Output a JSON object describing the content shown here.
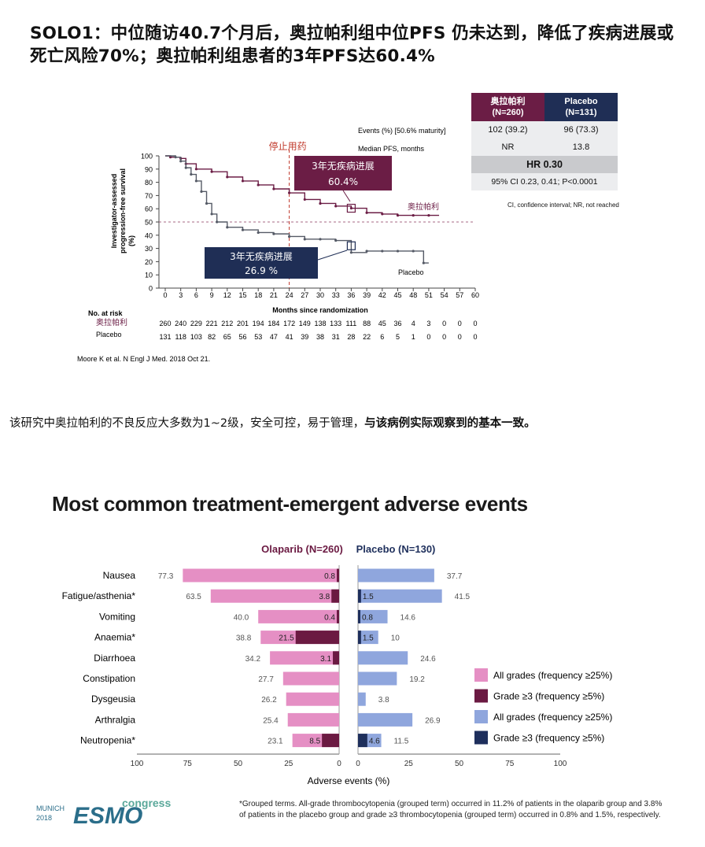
{
  "title": "SOLO1：中位随访40.7个月后，奥拉帕利组中位PFS 仍未达到，降低了疾病进展或死亡风险70%；奥拉帕利组患者的3年PFS达60.4%",
  "colors": {
    "olaparib_km": "#6b1d45",
    "placebo_km": "#1f2e55",
    "ola_all": "#e58fc4",
    "ola_g3": "#6b1a42",
    "pla_all": "#8fa6dd",
    "pla_g3": "#1e2f5c"
  },
  "km": {
    "stop_label": "停止用药",
    "events_label": "Events (%) [50.6% maturity]",
    "median_label": "Median PFS, months",
    "y_axis_label_1": "Investigator-assessed",
    "y_axis_label_2": "progression-free survival",
    "y_axis_label_3": "(%)",
    "x_axis_label": "Months since randomization",
    "y_ticks": [
      "100",
      "90",
      "80",
      "70",
      "60",
      "50",
      "40",
      "30",
      "20",
      "10",
      "0"
    ],
    "x_ticks": [
      "0",
      "3",
      "6",
      "9",
      "12",
      "15",
      "18",
      "21",
      "24",
      "27",
      "30",
      "33",
      "36",
      "39",
      "42",
      "45",
      "48",
      "51",
      "54",
      "57",
      "60"
    ],
    "callout_ola_line1": "3年无疾病进展",
    "callout_ola_line2": "60.4%",
    "callout_pla_line1": "3年无疾病进展",
    "callout_pla_line2": "26.9 %",
    "curve_label_ola": "奥拉帕利",
    "curve_label_pla": "Placebo",
    "risk_title": "No. at risk",
    "risk_ola_label": "奥拉帕利",
    "risk_pla_label": "Placebo",
    "risk_ola": [
      "260",
      "240",
      "229",
      "221",
      "212",
      "201",
      "194",
      "184",
      "172",
      "149",
      "138",
      "133",
      "111",
      "88",
      "45",
      "36",
      "4",
      "3",
      "0",
      "0",
      "0"
    ],
    "risk_pla": [
      "131",
      "118",
      "103",
      "82",
      "65",
      "56",
      "53",
      "47",
      "41",
      "39",
      "38",
      "31",
      "28",
      "22",
      "6",
      "5",
      "1",
      "0",
      "0",
      "0",
      "0"
    ],
    "citation": "Moore K et al. N Engl J Med. 2018 Oct 21."
  },
  "table": {
    "ola_head_1": "奥拉帕利",
    "ola_head_2": "(N=260)",
    "pla_head_1": "Placebo",
    "pla_head_2": "(N=131)",
    "ola_events": "102 (39.2)",
    "pla_events": "96 (73.3)",
    "ola_median": "NR",
    "pla_median": "13.8",
    "hr": "HR 0.30",
    "ci": "95% CI 0.23, 0.41; P<0.0001",
    "abbrev": "CI, confidence interval; NR, not reached"
  },
  "body_text_plain": "该研究中奥拉帕利的不良反应大多数为1~2级，安全可控，易于管理，",
  "body_text_bold": "与该病例实际观察到的基本一致。",
  "ae": {
    "title": "Most common treatment-emergent adverse events",
    "ola_header": "Olaparib (N=260)",
    "pla_header": "Placebo (N=130)",
    "x_label": "Adverse events (%)",
    "x_ticks_left": [
      "100",
      "75",
      "50",
      "25",
      "0"
    ],
    "x_ticks_right": [
      "0",
      "25",
      "50",
      "75",
      "100"
    ],
    "legend": [
      "All grades (frequency ≥25%)",
      "Grade ≥3 (frequency ≥5%)",
      "All grades (frequency ≥25%)",
      "Grade ≥3 (frequency ≥5%)"
    ],
    "footnote": "*Grouped terms. All-grade thrombocytopenia (grouped term) occurred in 11.2% of patients in the olaparib group and 3.8% of patients in the placebo group and grade ≥3 thrombocytopenia (grouped term) occurred in 0.8% and 1.5%, respectively.",
    "logo_munich": "MUNICH",
    "logo_year": "2018",
    "logo_esmo": "ESMO",
    "logo_congress": "congress"
  },
  "chart_data": [
    {
      "type": "line",
      "xlabel": "Months since randomization",
      "ylabel": "Investigator-assessed progression-free survival (%)",
      "xlim": [
        0,
        60
      ],
      "ylim": [
        0,
        100
      ],
      "series": [
        {
          "name": "奥拉帕利",
          "x": [
            0,
            1,
            3,
            4,
            6,
            9,
            12,
            15,
            18,
            21,
            24,
            27,
            30,
            33,
            36,
            39,
            42,
            45,
            48,
            51,
            53
          ],
          "y": [
            100,
            99,
            98,
            94,
            90,
            88,
            84,
            81,
            78,
            75,
            72,
            67,
            64,
            62,
            60.4,
            57,
            56,
            55,
            55,
            55,
            55
          ]
        },
        {
          "name": "Placebo",
          "x": [
            0,
            2,
            3,
            4,
            5,
            6,
            7,
            8,
            9,
            10,
            12,
            15,
            18,
            21,
            24,
            27,
            30,
            33,
            36,
            39,
            42,
            45,
            48,
            50,
            51
          ],
          "y": [
            100,
            99,
            96,
            91,
            86,
            81,
            73,
            64,
            56,
            50,
            46,
            44,
            42,
            41,
            39,
            37,
            37,
            36,
            26.9,
            28,
            28,
            28,
            28,
            19,
            19
          ]
        }
      ]
    },
    {
      "type": "bar",
      "categories": [
        "Nausea",
        "Fatigue/asthenia*",
        "Vomiting",
        "Anaemia*",
        "Diarrhoea",
        "Constipation",
        "Dysgeusia",
        "Arthralgia",
        "Neutropenia*"
      ],
      "series": [
        {
          "name": "Olaparib All grades",
          "values": [
            77.3,
            63.5,
            40.0,
            38.8,
            34.2,
            27.7,
            26.2,
            25.4,
            23.1
          ]
        },
        {
          "name": "Olaparib Grade ≥3",
          "values": [
            0.8,
            3.8,
            0.4,
            21.5,
            3.1,
            null,
            null,
            null,
            8.5
          ]
        },
        {
          "name": "Placebo All grades",
          "values": [
            37.7,
            41.5,
            14.6,
            10,
            24.6,
            19.2,
            3.8,
            26.9,
            11.5
          ]
        },
        {
          "name": "Placebo Grade ≥3",
          "values": [
            null,
            1.5,
            0.8,
            1.5,
            null,
            null,
            null,
            null,
            4.6
          ]
        }
      ],
      "xlabel": "Adverse events (%)",
      "xlim": [
        0,
        100
      ]
    }
  ]
}
